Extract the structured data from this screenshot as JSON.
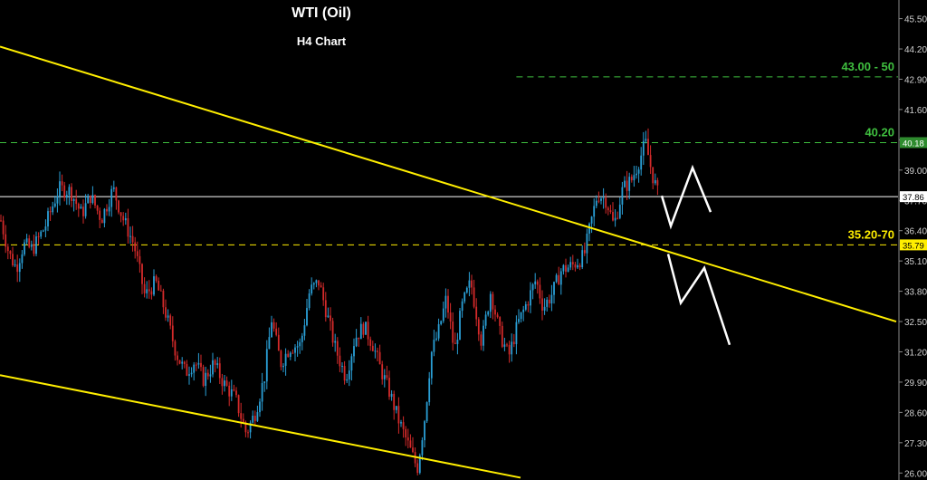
{
  "title": "WTI (Oil)",
  "subtitle": "H4 Chart",
  "colors": {
    "background": "#000000",
    "up_candle": "#2a9fd6",
    "down_candle": "#d42a2a",
    "trendline": "#ffee00",
    "resistance": "#3fbf3f",
    "support": "#ffee00",
    "current_price": "#ffffff",
    "axis_text": "#cfcfcf"
  },
  "annotations": {
    "upper_target": "43.00 - 50",
    "resistance_label": "40.20",
    "support_label": "35.20-70"
  },
  "chart_data": {
    "type": "candlestick",
    "title": "WTI (Oil)",
    "subtitle": "H4 Chart",
    "ylim": [
      25.7,
      46.3
    ],
    "y_ticks": [
      "45.50",
      "44.20",
      "42.90",
      "41.60",
      "40.30",
      "39.00",
      "37.70",
      "36.40",
      "35.10",
      "33.80",
      "32.50",
      "31.20",
      "29.90",
      "28.60",
      "27.30",
      "26.00"
    ],
    "price_tags": [
      {
        "value": "40.18",
        "bg": "#2e8b2e",
        "fg": "#ffffff"
      },
      {
        "value": "37.86",
        "bg": "#ffffff",
        "fg": "#000000"
      },
      {
        "value": "35.79",
        "bg": "#ffee00",
        "fg": "#000000"
      }
    ],
    "horizontal_levels": [
      {
        "value": 43.0,
        "style": "dashed",
        "color": "#3fbf3f",
        "start": 0.575
      },
      {
        "value": 40.18,
        "style": "dashed",
        "color": "#3fbf3f",
        "start": 0.0
      },
      {
        "value": 37.86,
        "style": "solid",
        "color": "#ffffff",
        "start": 0.0
      },
      {
        "value": 35.79,
        "style": "dashed",
        "color": "#ffee00",
        "start": 0.0
      }
    ],
    "trendlines": [
      {
        "from": [
          0,
          44.3
        ],
        "to": [
          990,
          32.5
        ],
        "color": "#ffee00"
      },
      {
        "from": [
          0,
          30.2
        ],
        "to": [
          575,
          25.8
        ],
        "color": "#ffee00"
      }
    ],
    "projections": [
      {
        "points": [
          [
            731,
            37.9
          ],
          [
            741,
            36.6
          ],
          [
            765,
            39.1
          ],
          [
            785,
            37.2
          ]
        ],
        "color": "#ffffff"
      },
      {
        "points": [
          [
            738,
            35.4
          ],
          [
            752,
            33.3
          ],
          [
            778,
            34.8
          ],
          [
            806,
            31.5
          ]
        ],
        "color": "#ffffff"
      }
    ],
    "price_path": [
      [
        0,
        37.0
      ],
      [
        10,
        35.4
      ],
      [
        18,
        34.8
      ],
      [
        26,
        35.8
      ],
      [
        36,
        35.6
      ],
      [
        50,
        36.6
      ],
      [
        65,
        38.2
      ],
      [
        78,
        38.1
      ],
      [
        90,
        37.1
      ],
      [
        100,
        37.9
      ],
      [
        112,
        36.9
      ],
      [
        125,
        38.2
      ],
      [
        135,
        37.0
      ],
      [
        148,
        35.8
      ],
      [
        160,
        33.6
      ],
      [
        172,
        34.2
      ],
      [
        182,
        33.0
      ],
      [
        195,
        31.1
      ],
      [
        205,
        30.3
      ],
      [
        215,
        30.8
      ],
      [
        225,
        30.0
      ],
      [
        236,
        30.7
      ],
      [
        248,
        29.8
      ],
      [
        260,
        29.2
      ],
      [
        272,
        27.7
      ],
      [
        282,
        28.6
      ],
      [
        292,
        30.1
      ],
      [
        300,
        32.6
      ],
      [
        310,
        30.7
      ],
      [
        320,
        31.4
      ],
      [
        332,
        31.5
      ],
      [
        342,
        33.8
      ],
      [
        352,
        34.2
      ],
      [
        360,
        33.0
      ],
      [
        370,
        31.4
      ],
      [
        382,
        30.1
      ],
      [
        392,
        31.8
      ],
      [
        402,
        32.3
      ],
      [
        412,
        31.5
      ],
      [
        420,
        30.5
      ],
      [
        430,
        29.5
      ],
      [
        440,
        28.3
      ],
      [
        452,
        27.1
      ],
      [
        461,
        26.2
      ],
      [
        470,
        28.6
      ],
      [
        476,
        31.1
      ],
      [
        484,
        32.0
      ],
      [
        493,
        33.5
      ],
      [
        502,
        31.2
      ],
      [
        510,
        33.1
      ],
      [
        520,
        34.2
      ],
      [
        532,
        31.6
      ],
      [
        542,
        33.8
      ],
      [
        552,
        32.0
      ],
      [
        562,
        31.0
      ],
      [
        572,
        32.4
      ],
      [
        582,
        33.3
      ],
      [
        592,
        34.3
      ],
      [
        600,
        33.1
      ],
      [
        610,
        33.7
      ],
      [
        620,
        34.7
      ],
      [
        632,
        34.9
      ],
      [
        645,
        35.3
      ],
      [
        652,
        36.6
      ],
      [
        660,
        38.0
      ],
      [
        670,
        37.7
      ],
      [
        678,
        36.6
      ],
      [
        688,
        38.2
      ],
      [
        698,
        38.6
      ],
      [
        707,
        39.5
      ],
      [
        713,
        40.2
      ],
      [
        720,
        38.9
      ],
      [
        728,
        37.8
      ]
    ]
  }
}
